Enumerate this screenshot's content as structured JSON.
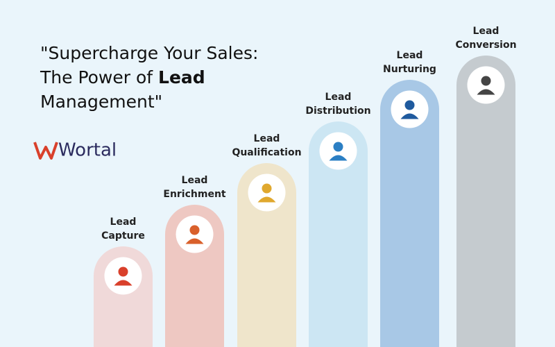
{
  "title": {
    "line1": "\"Supercharge Your Sales:",
    "line2": "The Power of ",
    "line2_bold": "Lead",
    "line3": "Management\""
  },
  "logo": "Wortal",
  "stages": [
    {
      "line1": "Lead",
      "line2": "Capture"
    },
    {
      "line1": "Lead",
      "line2": "Enrichment"
    },
    {
      "line1": "Lead",
      "line2": "Qualification"
    },
    {
      "line1": "Lead",
      "line2": "Distribution"
    },
    {
      "line1": "Lead",
      "line2": "Nurturing"
    },
    {
      "line1": "Lead",
      "line2": "Conversion"
    }
  ]
}
